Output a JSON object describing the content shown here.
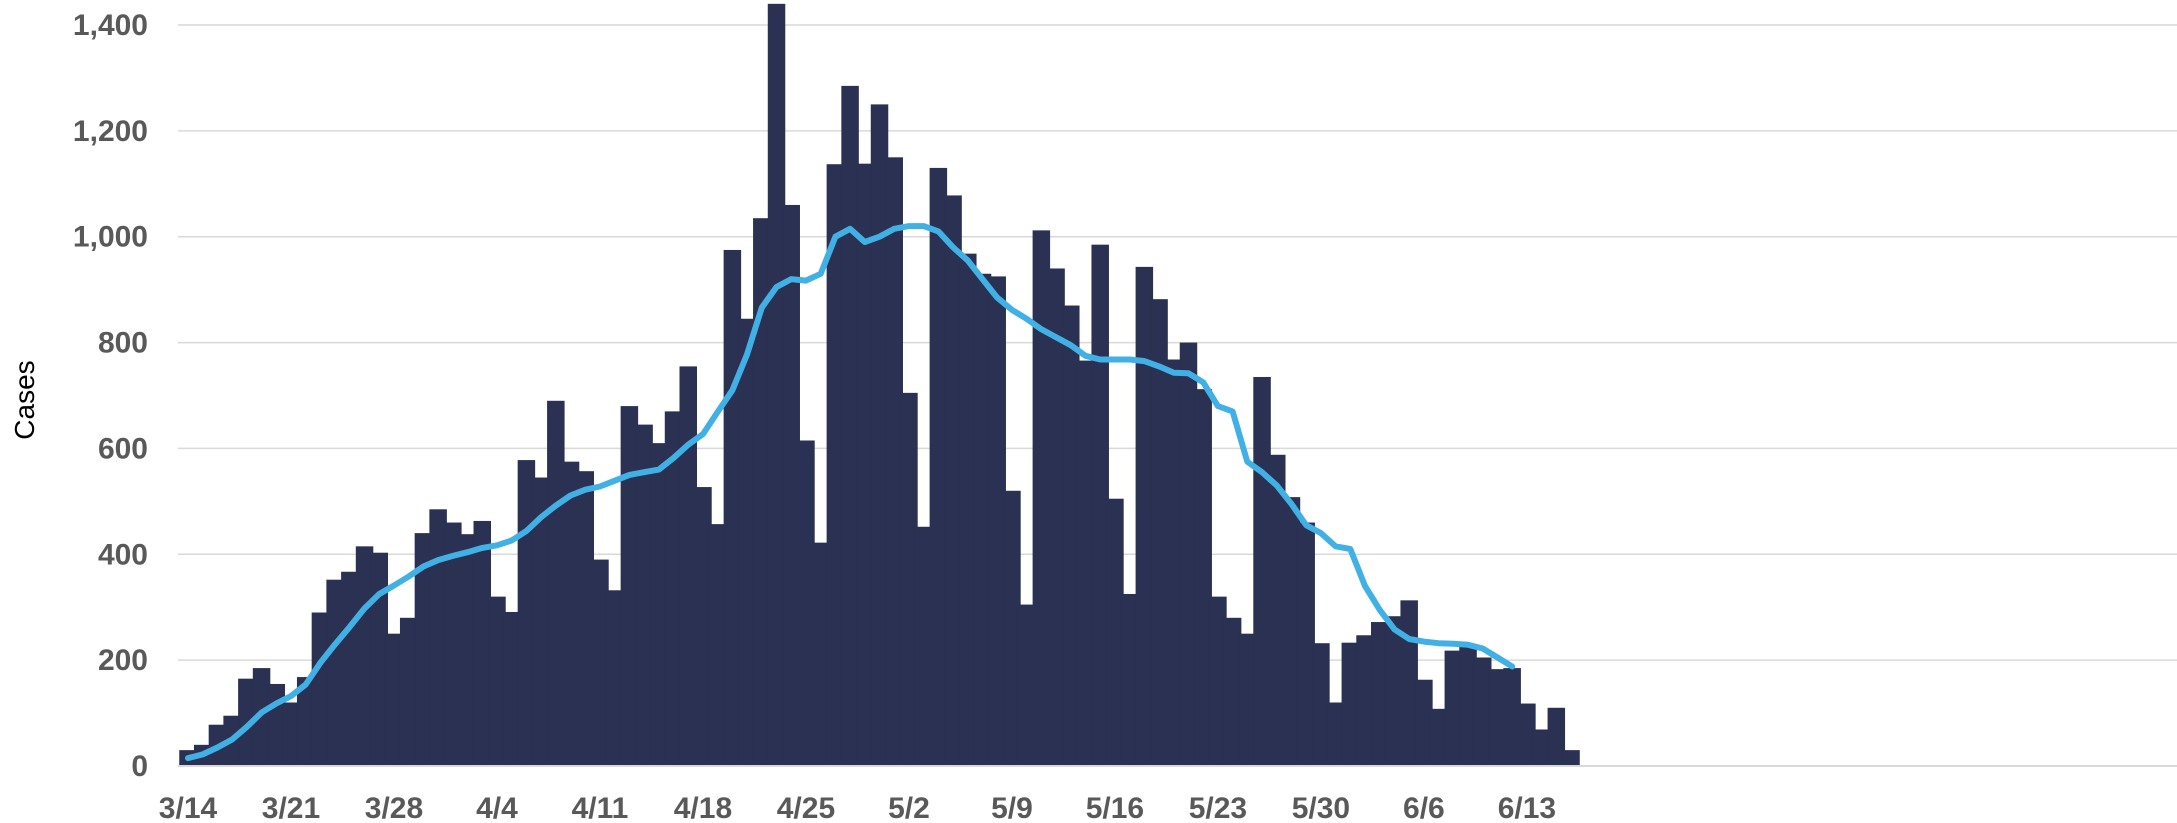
{
  "colors": {
    "bar": "#2b3152",
    "avg_line": "#41b1e5",
    "grid": "#d9d9d9",
    "tick_text": "#595959"
  },
  "chart_data": {
    "type": "bar",
    "title": "",
    "xlabel": "",
    "ylabel": "Cases",
    "ylim": [
      0,
      1400
    ],
    "yticks": [
      0,
      200,
      400,
      600,
      800,
      1000,
      1200,
      1400
    ],
    "ytick_labels": [
      "0",
      "200",
      "400",
      "600",
      "800",
      "1,000",
      "1,200",
      "1,400"
    ],
    "grid": true,
    "legend": "none",
    "start_date": "3/14",
    "xtick_labels": [
      "3/14",
      "3/21",
      "3/28",
      "4/4",
      "4/11",
      "4/18",
      "4/25",
      "5/2",
      "5/9",
      "5/16",
      "5/23",
      "5/30",
      "6/6",
      "6/13"
    ],
    "series": [
      {
        "type": "bar",
        "values": [
          30,
          40,
          78,
          95,
          165,
          185,
          155,
          120,
          168,
          290,
          352,
          367,
          415,
          403,
          250,
          280,
          440,
          485,
          460,
          438,
          463,
          320,
          291,
          578,
          545,
          690,
          575,
          557,
          390,
          332,
          680,
          645,
          610,
          670,
          755,
          527,
          457,
          975,
          845,
          1035,
          1440,
          1060,
          615,
          422,
          1137,
          1285,
          1138,
          1250,
          1150,
          705,
          452,
          1130,
          1078,
          968,
          930,
          925,
          520,
          305,
          1012,
          940,
          870,
          766,
          985,
          505,
          325,
          943,
          882,
          768,
          800,
          712,
          320,
          280,
          250,
          735,
          588,
          508,
          460,
          232,
          120,
          233,
          247,
          272,
          283,
          313,
          163,
          108,
          218,
          228,
          205,
          183,
          185,
          118,
          69,
          110,
          30
        ]
      },
      {
        "type": "line",
        "values": [
          15,
          22,
          35,
          50,
          74,
          101,
          118,
          132,
          154,
          195,
          230,
          263,
          298,
          325,
          341,
          358,
          377,
          389,
          397,
          404,
          412,
          417,
          426,
          444,
          470,
          492,
          511,
          522,
          528,
          539,
          550,
          555,
          560,
          582,
          607,
          627,
          669,
          710,
          778,
          866,
          905,
          920,
          917,
          930,
          1000,
          1015,
          990,
          1000,
          1015,
          1020,
          1020,
          1010,
          980,
          955,
          920,
          885,
          862,
          845,
          825,
          810,
          795,
          775,
          768,
          768,
          768,
          765,
          755,
          743,
          742,
          725,
          680,
          670,
          575,
          555,
          530,
          495,
          455,
          440,
          415,
          410,
          340,
          295,
          258,
          240,
          235,
          232,
          231,
          229,
          222,
          205,
          188
        ]
      }
    ]
  }
}
